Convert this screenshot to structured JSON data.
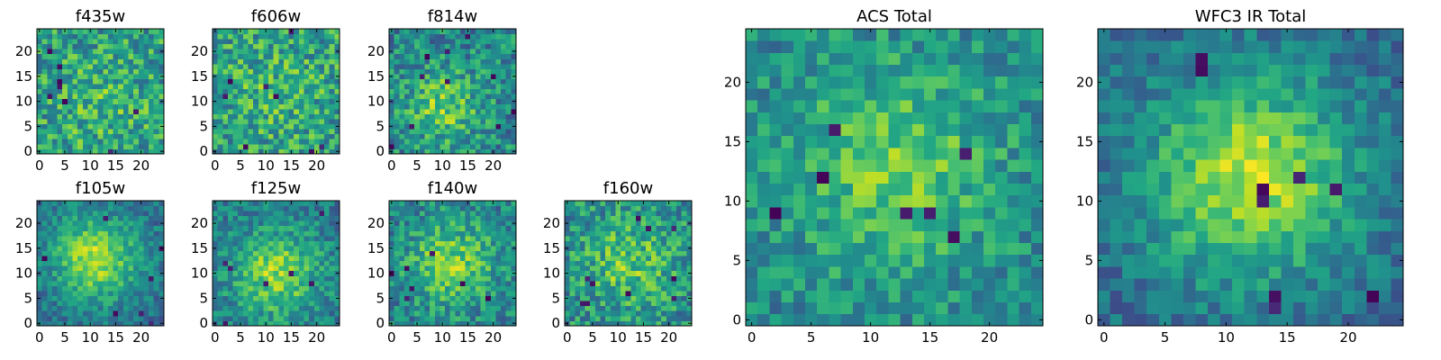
{
  "chart_data": [
    {
      "type": "heatmap",
      "title": "f435w",
      "colormap": "viridis",
      "grid": false,
      "shape": [
        25,
        25
      ],
      "xlim": [
        -0.5,
        24.5
      ],
      "ylim": [
        -0.5,
        24.5
      ],
      "xticks": [
        0,
        5,
        10,
        15,
        20
      ],
      "yticks": [
        0,
        5,
        10,
        15,
        20
      ],
      "seed": 11,
      "peak": [
        12,
        10
      ],
      "peak_amp": 0.1,
      "peak_sigma": 6,
      "noise": 0.5,
      "low_count": 8
    },
    {
      "type": "heatmap",
      "title": "f606w",
      "colormap": "viridis",
      "grid": false,
      "shape": [
        25,
        25
      ],
      "xlim": [
        -0.5,
        24.5
      ],
      "ylim": [
        -0.5,
        24.5
      ],
      "xticks": [
        0,
        5,
        10,
        15,
        20
      ],
      "yticks": [
        0,
        5,
        10,
        15,
        20
      ],
      "seed": 23,
      "peak": [
        12,
        12
      ],
      "peak_amp": 0.1,
      "peak_sigma": 6,
      "noise": 0.5,
      "low_count": 8
    },
    {
      "type": "heatmap",
      "title": "f814w",
      "colormap": "viridis",
      "grid": false,
      "shape": [
        25,
        25
      ],
      "xlim": [
        -0.5,
        24.5
      ],
      "ylim": [
        -0.5,
        24.5
      ],
      "xticks": [
        0,
        5,
        10,
        15,
        20
      ],
      "yticks": [
        0,
        5,
        10,
        15,
        20
      ],
      "seed": 37,
      "peak": [
        10,
        9
      ],
      "peak_amp": 0.3,
      "peak_sigma": 5,
      "noise": 0.45,
      "low_count": 10
    },
    {
      "type": "heatmap",
      "title": "f105w",
      "colormap": "viridis",
      "grid": false,
      "shape": [
        25,
        25
      ],
      "xlim": [
        -0.5,
        24.5
      ],
      "ylim": [
        -0.5,
        24.5
      ],
      "xticks": [
        0,
        5,
        10,
        15,
        20
      ],
      "yticks": [
        0,
        5,
        10,
        15,
        20
      ],
      "seed": 41,
      "peak": [
        11,
        13
      ],
      "peak_amp": 0.5,
      "peak_sigma": 6,
      "noise": 0.3,
      "low_count": 7
    },
    {
      "type": "heatmap",
      "title": "f125w",
      "colormap": "viridis",
      "grid": false,
      "shape": [
        25,
        25
      ],
      "xlim": [
        -0.5,
        24.5
      ],
      "ylim": [
        -0.5,
        24.5
      ],
      "xticks": [
        0,
        5,
        10,
        15,
        20
      ],
      "yticks": [
        0,
        5,
        10,
        15,
        20
      ],
      "seed": 53,
      "peak": [
        12,
        10
      ],
      "peak_amp": 0.4,
      "peak_sigma": 6,
      "noise": 0.35,
      "low_count": 7
    },
    {
      "type": "heatmap",
      "title": "f140w",
      "colormap": "viridis",
      "grid": false,
      "shape": [
        25,
        25
      ],
      "xlim": [
        -0.5,
        24.5
      ],
      "ylim": [
        -0.5,
        24.5
      ],
      "xticks": [
        0,
        5,
        10,
        15,
        20
      ],
      "yticks": [
        0,
        5,
        10,
        15,
        20
      ],
      "seed": 67,
      "peak": [
        12,
        12
      ],
      "peak_amp": 0.35,
      "peak_sigma": 6,
      "noise": 0.4,
      "low_count": 7
    },
    {
      "type": "heatmap",
      "title": "f160w",
      "colormap": "viridis",
      "grid": false,
      "shape": [
        25,
        25
      ],
      "xlim": [
        -0.5,
        24.5
      ],
      "ylim": [
        -0.5,
        24.5
      ],
      "xticks": [
        0,
        5,
        10,
        15,
        20
      ],
      "yticks": [
        0,
        5,
        10,
        15,
        20
      ],
      "seed": 79,
      "peak": [
        12,
        12
      ],
      "peak_amp": 0.25,
      "peak_sigma": 6,
      "noise": 0.45,
      "low_count": 10
    },
    {
      "type": "heatmap",
      "title": "ACS Total",
      "colormap": "viridis",
      "grid": false,
      "shape": [
        25,
        25
      ],
      "xlim": [
        -0.5,
        24.5
      ],
      "ylim": [
        -0.5,
        24.5
      ],
      "xticks": [
        0,
        5,
        10,
        15,
        20
      ],
      "yticks": [
        0,
        5,
        10,
        15,
        20
      ],
      "seed": 97,
      "peak": [
        12,
        13
      ],
      "peak_amp": 0.3,
      "peak_sigma": 6,
      "noise": 0.35,
      "low_count": 7
    },
    {
      "type": "heatmap",
      "title": "WFC3 IR Total",
      "colormap": "viridis",
      "grid": false,
      "shape": [
        25,
        25
      ],
      "xlim": [
        -0.5,
        24.5
      ],
      "ylim": [
        -0.5,
        24.5
      ],
      "xticks": [
        0,
        5,
        10,
        15,
        20
      ],
      "yticks": [
        0,
        5,
        10,
        15,
        20
      ],
      "seed": 131,
      "peak": [
        12,
        12
      ],
      "peak_amp": 0.55,
      "peak_sigma": 6,
      "noise": 0.28,
      "low_count": 9
    }
  ]
}
